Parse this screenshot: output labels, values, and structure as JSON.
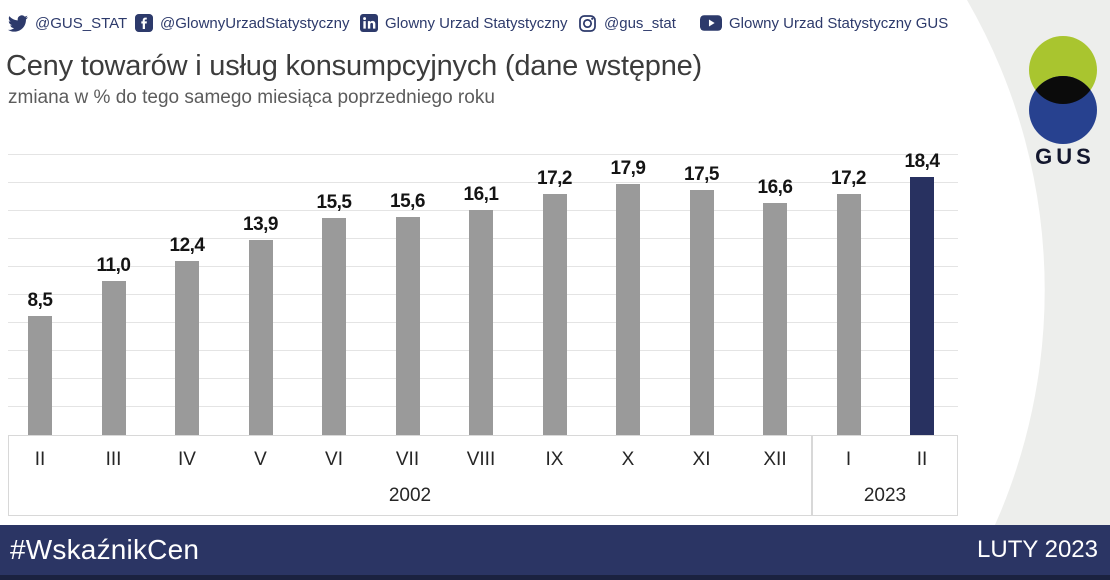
{
  "social": {
    "items": [
      {
        "icon": "twitter-icon",
        "label": "@GUS_STAT"
      },
      {
        "icon": "facebook-icon",
        "label": "@GlownyUrzadStatystyczny"
      },
      {
        "icon": "linkedin-icon",
        "label": "Glowny Urzad Statystyczny"
      },
      {
        "icon": "instagram-icon",
        "label": "@gus_stat"
      },
      {
        "icon": "youtube-icon",
        "label": "Glowny Urzad Statystyczny GUS"
      }
    ]
  },
  "header": {
    "title": "Ceny towarów i usług konsumpcyjnych (dane wstępne)",
    "subtitle": "zmiana w % do tego samego miesiąca poprzedniego roku"
  },
  "chart_data": {
    "type": "bar",
    "title": "Ceny towarów i usług konsumpcyjnych (dane wstępne)",
    "ylabel": "zmiana w % do tego samego miesiąca poprzedniego roku",
    "categories": [
      "II",
      "III",
      "IV",
      "V",
      "VI",
      "VII",
      "VIII",
      "IX",
      "X",
      "XI",
      "XII",
      "I",
      "II"
    ],
    "values": [
      8.5,
      11.0,
      12.4,
      13.9,
      15.5,
      15.6,
      16.1,
      17.2,
      17.9,
      17.5,
      16.6,
      17.2,
      18.4
    ],
    "value_labels": [
      "8,5",
      "11,0",
      "12,4",
      "13,9",
      "15,5",
      "15,6",
      "16,1",
      "17,2",
      "17,9",
      "17,5",
      "16,6",
      "17,2",
      "18,4"
    ],
    "groups": [
      {
        "year": "2002",
        "from": 0,
        "to": 10
      },
      {
        "year": "2023",
        "from": 11,
        "to": 12
      }
    ],
    "highlight_index": 12,
    "bar_color": "#9a9a9a",
    "highlight_color": "#283160",
    "ylim": [
      0,
      21
    ],
    "grid_step": 2,
    "grid_max": 20,
    "grid": true,
    "legend": false
  },
  "logo": {
    "text": "GUS",
    "green": "#a9c52f",
    "blue": "#27418f",
    "black": "#0b0b0b"
  },
  "footer": {
    "hashtag": "#WskaźnikCen",
    "period": "LUTY 2023",
    "background": "#2b3564"
  },
  "colors": {
    "background_curve": "#edeeec",
    "gridline": "#e4e4e4",
    "title_text": "#3c3c3c",
    "social_text": "#2d3a6b"
  }
}
